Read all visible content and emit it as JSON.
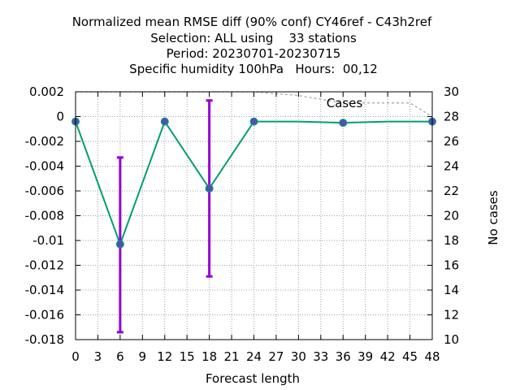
{
  "chart_data": {
    "type": "line",
    "title_lines": [
      "Normalized mean RMSE diff (90% conf) CY46ref - C43h2ref",
      "Selection: ALL using    33 stations",
      "Period: 20230701-20230715",
      "Specific humidity 100hPa   Hours:  00,12"
    ],
    "xlabel": "Forecast length",
    "ylabel": "",
    "y2label": "No cases",
    "xlim": [
      0,
      48
    ],
    "ylim": [
      -0.018,
      0.002
    ],
    "y2lim": [
      10,
      30
    ],
    "x_ticks": [
      "0",
      "3",
      "6",
      "9",
      "12",
      "15",
      "18",
      "21",
      "24",
      "27",
      "30",
      "33",
      "36",
      "39",
      "42",
      "45",
      "48"
    ],
    "y_ticks": [
      "0.002",
      "0",
      "-0.002",
      "-0.004",
      "-0.006",
      "-0.008",
      "-0.01",
      "-0.012",
      "-0.014",
      "-0.016",
      "-0.018"
    ],
    "y2_ticks": [
      "30",
      "28",
      "26",
      "24",
      "22",
      "20",
      "18",
      "16",
      "14",
      "12",
      "10"
    ],
    "grid": true,
    "series": [
      {
        "x": [
          0,
          6,
          12,
          18,
          24,
          30,
          36,
          42,
          48
        ],
        "values": [
          -0.0004,
          -0.0103,
          -0.0004,
          -0.0058,
          -0.0004,
          -0.0004,
          -0.0005,
          -0.0004,
          -0.0004
        ],
        "color": "#009e73",
        "marker_x": [
          0,
          6,
          12,
          18,
          24,
          36,
          48
        ]
      },
      {
        "name": "Cases",
        "axis": "y2",
        "x": [
          0,
          12,
          24,
          30,
          36,
          42,
          45,
          48
        ],
        "values": [
          30,
          30,
          30,
          29.7,
          29.1,
          29.1,
          29.1,
          28.0
        ],
        "color": "#a0a0a0",
        "dash": true
      }
    ],
    "error_bars": {
      "color": "#9400d3",
      "x": [
        6,
        18
      ],
      "low": [
        -0.0174,
        -0.0129
      ],
      "high": [
        -0.0033,
        0.0013
      ]
    },
    "marker_color": "#5050b0"
  }
}
